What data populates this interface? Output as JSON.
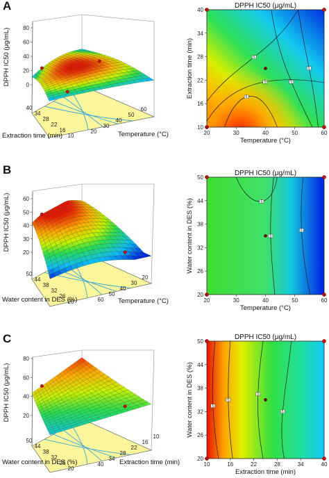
{
  "panel_labels": [
    "A",
    "B",
    "C"
  ],
  "chart_data": [
    {
      "panel": "A",
      "type": "surface",
      "zlabel": "DPPH IC50 (μg/mL)",
      "xlabel": "Temperature (°C)",
      "ylabel": "Extraction time (min)",
      "z_ticks": [
        "80",
        "60",
        "40",
        "20",
        "0"
      ],
      "x_ticks": [
        "20",
        "30",
        "40",
        "50",
        "60"
      ],
      "y_ticks": [
        "40",
        "34",
        "28",
        "22",
        "16",
        "10"
      ],
      "zlim": [
        0,
        80
      ],
      "surface": {
        "type": "saddle",
        "rows": 18,
        "cols": 18,
        "z_range": [
          20,
          33
        ]
      },
      "design_points": [
        {
          "x": 20,
          "y": 40,
          "z": 27
        },
        {
          "x": 40,
          "y": 25,
          "z": 27
        },
        {
          "x": 60,
          "y": 10,
          "z": 27
        }
      ]
    },
    {
      "panel": "A",
      "type": "contour",
      "title": "DPPH IC50 (μg/mL)",
      "xlabel": "Temperature (°C)",
      "ylabel": "Extraction time (min)",
      "x_ticks": [
        "20",
        "30",
        "40",
        "50",
        "60"
      ],
      "y_ticks": [
        "10",
        "16",
        "22",
        "28",
        "34",
        "40"
      ],
      "xlim": [
        20,
        60
      ],
      "ylim": [
        10,
        40
      ],
      "contour_flags": [
        "5",
        "5",
        "5",
        "5",
        "5"
      ],
      "design_points": [
        {
          "x": 40,
          "y": 25
        },
        {
          "x": 20,
          "y": 10
        },
        {
          "x": 20,
          "y": 40
        },
        {
          "x": 60,
          "y": 10
        },
        {
          "x": 60,
          "y": 40
        }
      ]
    },
    {
      "panel": "B",
      "type": "surface",
      "zlabel": "DPPH IC50 (μg/mL)",
      "xlabel": "Temperature (°C)",
      "ylabel": "Water content in DES (%)",
      "z_ticks": [
        "60",
        "50",
        "40",
        "30",
        "20"
      ],
      "x_ticks": [
        "60",
        "50",
        "40",
        "30",
        "20"
      ],
      "y_ticks": [
        "50",
        "44",
        "38",
        "32",
        "26",
        "20"
      ],
      "zlim": [
        20,
        60
      ],
      "surface": {
        "type": "ridge",
        "rows": 18,
        "cols": 18,
        "z_range": [
          25,
          49
        ]
      },
      "design_points": [
        {
          "x": 40,
          "y": 35,
          "z": 47
        },
        {
          "x": 60,
          "y": 20,
          "z": 29
        }
      ]
    },
    {
      "panel": "B",
      "type": "contour",
      "title": "DPPH IC50 (μg/mL)",
      "xlabel": "Temperature (°C)",
      "ylabel": "Water content in DES (%)",
      "x_ticks": [
        "20",
        "30",
        "40",
        "50",
        "60"
      ],
      "y_ticks": [
        "20",
        "26",
        "32",
        "38",
        "44",
        "50"
      ],
      "xlim": [
        20,
        60
      ],
      "ylim": [
        20,
        50
      ],
      "contour_flags": [
        "5",
        "5",
        "5"
      ],
      "design_points": [
        {
          "x": 40,
          "y": 35
        },
        {
          "x": 20,
          "y": 20
        },
        {
          "x": 20,
          "y": 50
        },
        {
          "x": 60,
          "y": 20
        },
        {
          "x": 60,
          "y": 50
        }
      ]
    },
    {
      "panel": "C",
      "type": "surface",
      "zlabel": "DPPH IC50 (μg/mL)",
      "xlabel": "Extraction time (min)",
      "ylabel": "Water content in DES (%)",
      "z_ticks": [
        "80",
        "60",
        "40",
        "20"
      ],
      "x_ticks": [
        "40",
        "34",
        "28",
        "22",
        "16",
        "10"
      ],
      "y_ticks": [
        "50",
        "44",
        "38",
        "32",
        "26",
        "20"
      ],
      "zlim": [
        10,
        80
      ],
      "surface": {
        "type": "slope",
        "rows": 18,
        "cols": 18,
        "z_range": [
          20,
          62
        ]
      },
      "design_points": [
        {
          "x": 10,
          "y": 50,
          "z": 62
        },
        {
          "x": 25,
          "y": 35,
          "z": 42
        }
      ]
    },
    {
      "panel": "C",
      "type": "contour",
      "title": "DPPH IC50 (μg/mL)",
      "xlabel": "Extraction time (min)",
      "ylabel": "Water content in DES (%)",
      "x_ticks": [
        "10",
        "16",
        "22",
        "28",
        "34",
        "40"
      ],
      "y_ticks": [
        "20",
        "26",
        "32",
        "38",
        "44",
        "50"
      ],
      "xlim": [
        10,
        40
      ],
      "ylim": [
        20,
        50
      ],
      "contour_flags": [
        "5",
        "5",
        "5",
        "5"
      ],
      "design_points": [
        {
          "x": 25,
          "y": 35
        },
        {
          "x": 10,
          "y": 20
        },
        {
          "x": 10,
          "y": 50
        },
        {
          "x": 40,
          "y": 20
        },
        {
          "x": 40,
          "y": 50
        }
      ]
    }
  ]
}
